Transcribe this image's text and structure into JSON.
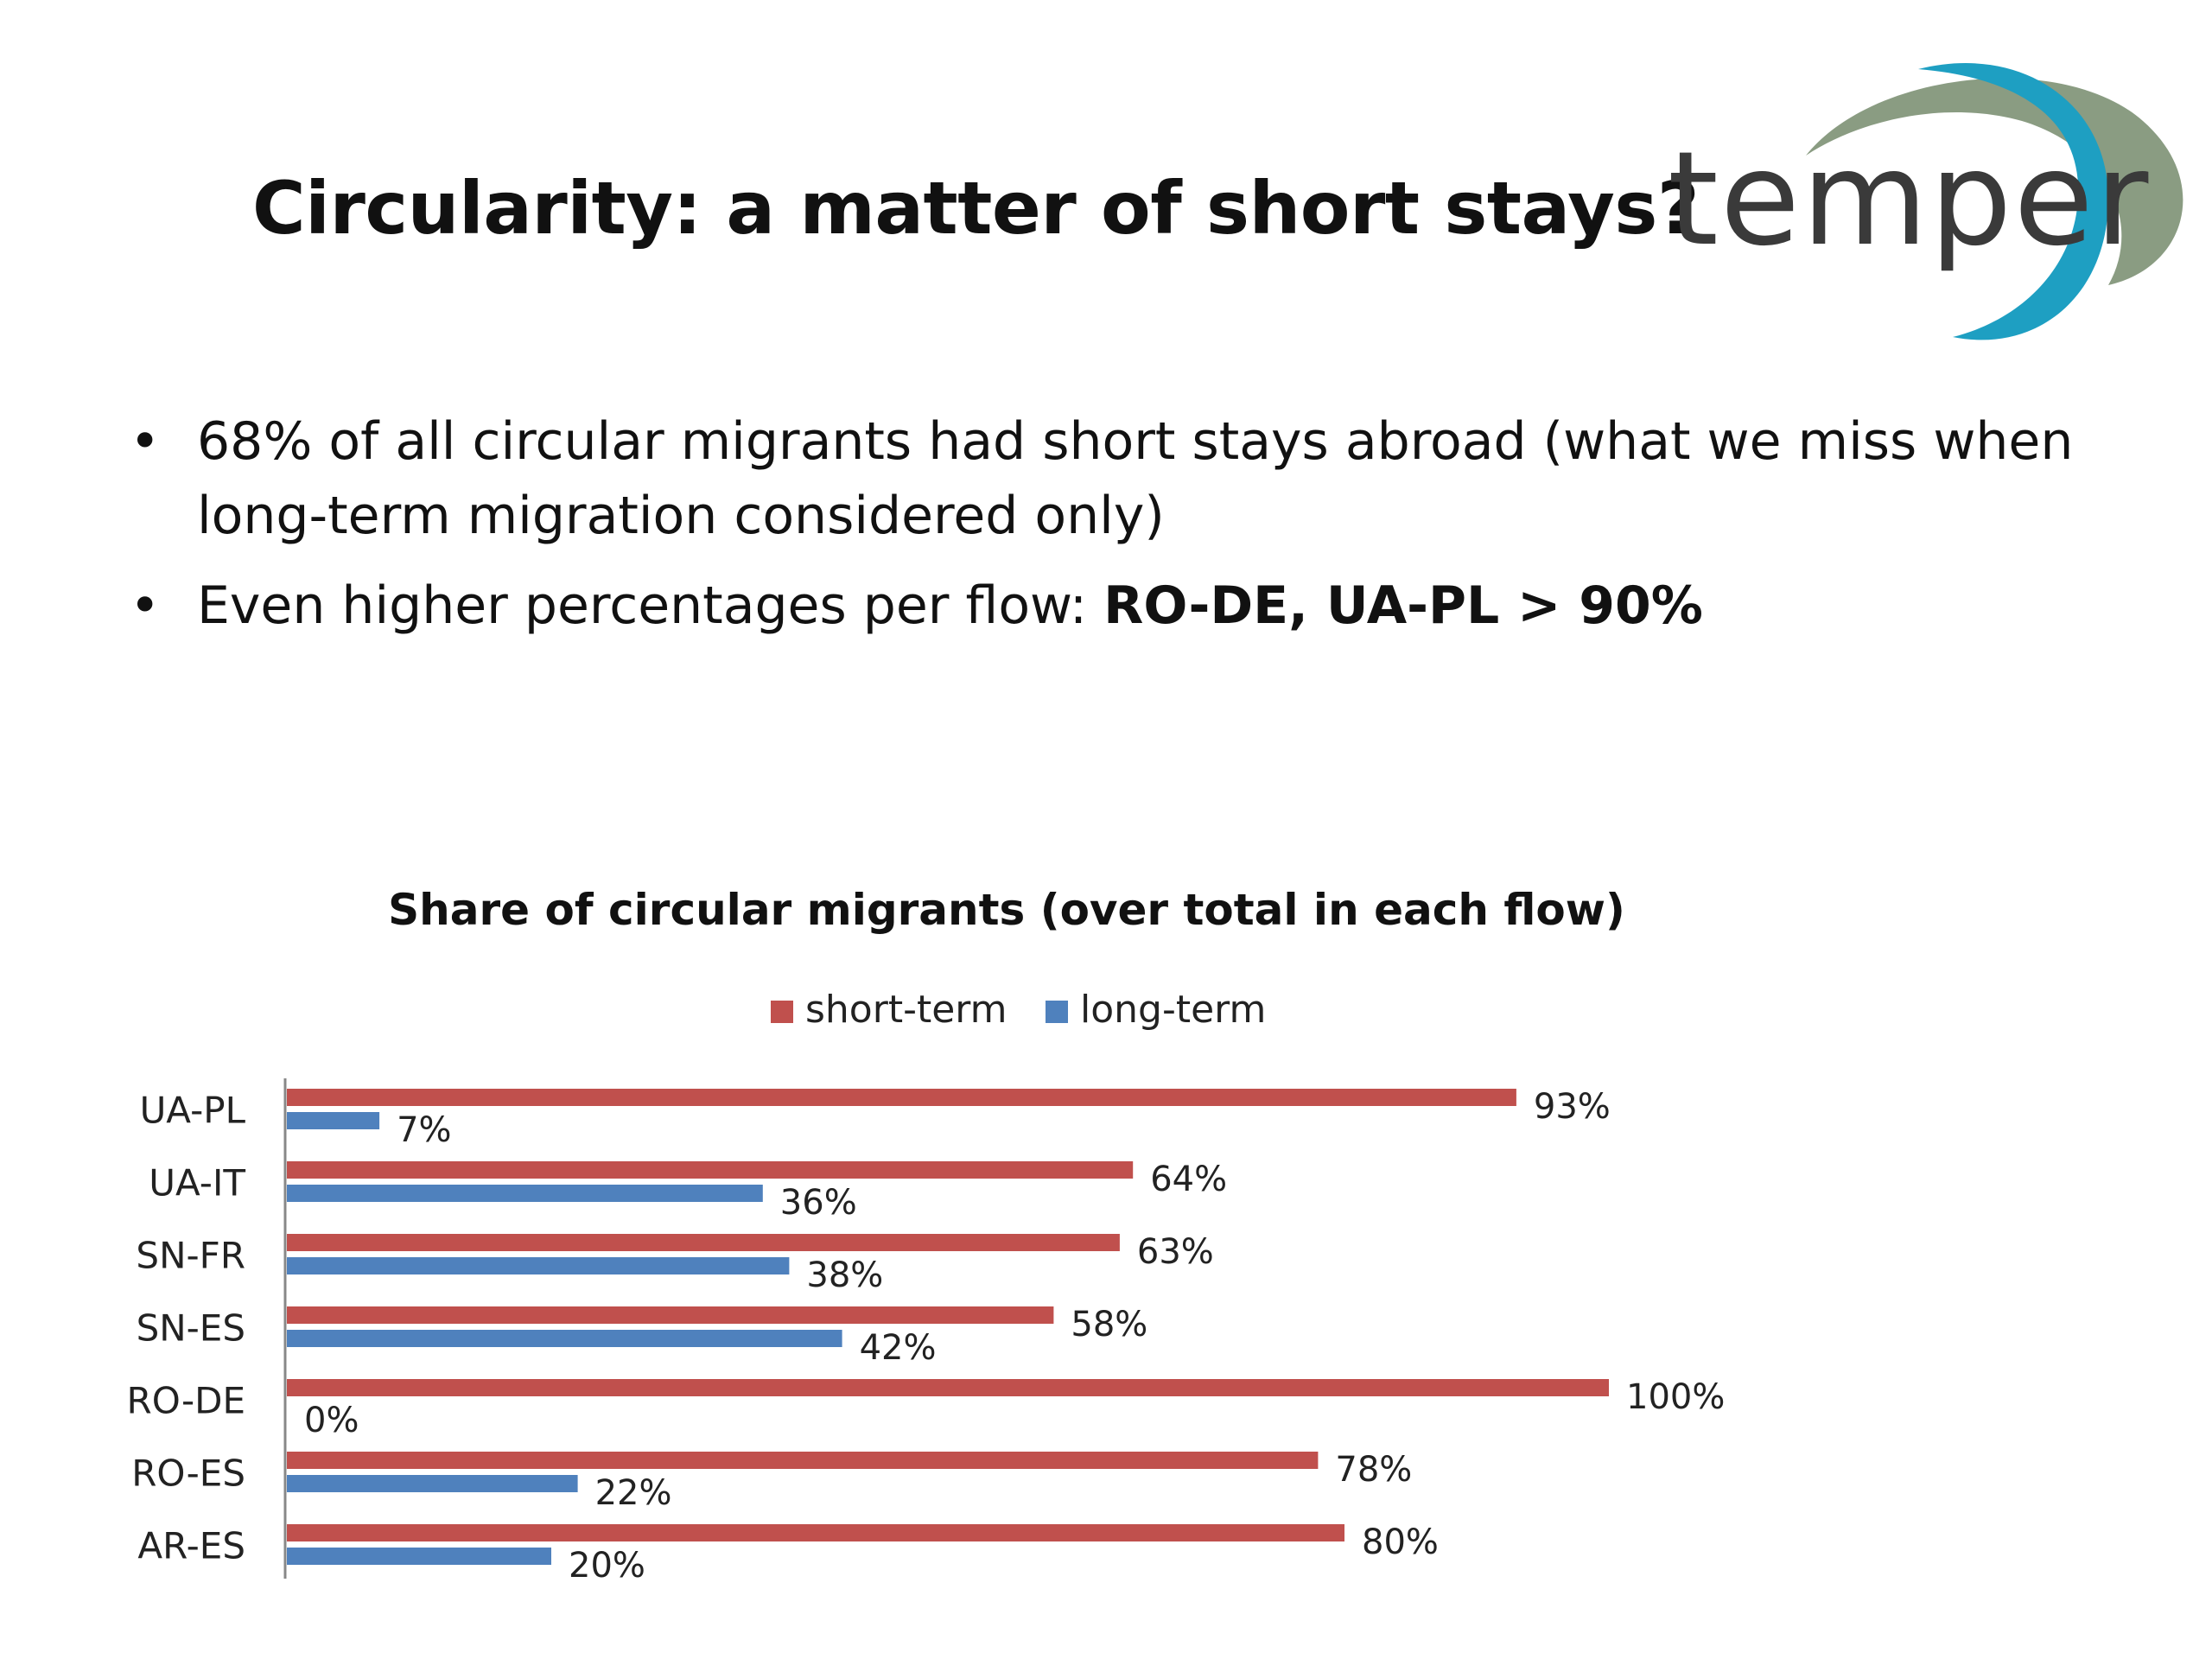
{
  "slide": {
    "title": "Circularity: a matter of short stays?",
    "logo_text": "temper",
    "bullets": [
      {
        "text": "68% of all circular migrants had short stays abroad (what we miss when long-term migration considered only)",
        "bold": ""
      },
      {
        "text": "Even higher percentages per flow:  ",
        "bold": "RO-DE, UA-PL > 90%"
      }
    ]
  },
  "colors": {
    "short_term": "#C0504D",
    "long_term": "#4F81BD",
    "logo_text": "#3a3a3a",
    "logo_arc_blue": "#1E9FC2",
    "logo_arc_green": "#8A9C82",
    "axis": "#888888"
  },
  "chart_data": {
    "type": "bar",
    "orientation": "horizontal",
    "title": "Share of circular migrants  (over total in each flow)",
    "categories": [
      "UA-PL",
      "UA-IT",
      "SN-FR",
      "SN-ES",
      "RO-DE",
      "RO-ES",
      "AR-ES"
    ],
    "series": [
      {
        "name": "short-term",
        "values": [
          93,
          64,
          63,
          58,
          100,
          78,
          80
        ]
      },
      {
        "name": "long-term",
        "values": [
          7,
          36,
          38,
          42,
          0,
          22,
          20
        ]
      }
    ],
    "value_suffix": "%",
    "xlim": [
      0,
      100
    ],
    "grid": false,
    "legend_position": "top"
  }
}
